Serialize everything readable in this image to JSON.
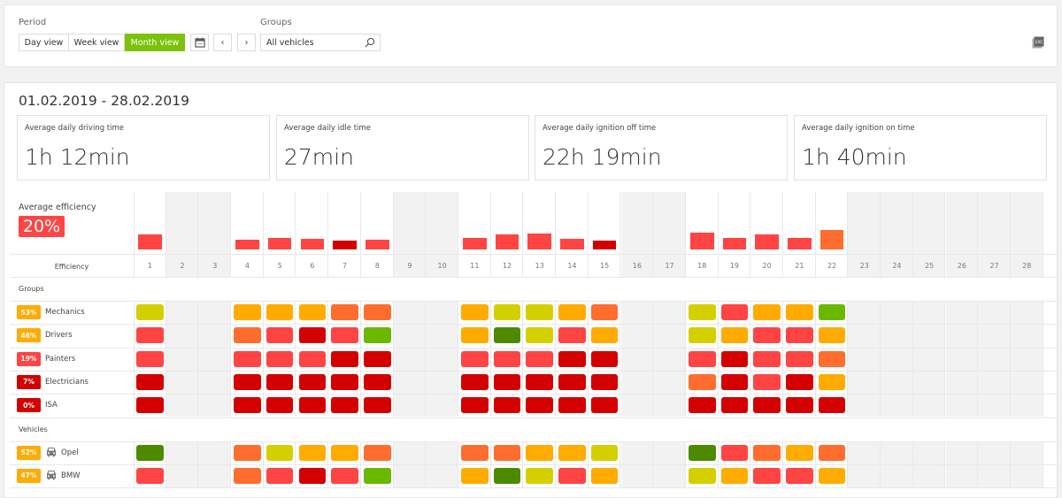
{
  "toolbar": {
    "period_label": "Period",
    "views": [
      "Day view",
      "Week view",
      "Month view"
    ],
    "active_view": "Month view",
    "groups_label": "Groups",
    "groups_value": "All vehicles",
    "export_label": "EXC"
  },
  "summary": {
    "date_range": "01.02.2019 - 28.02.2019",
    "cards": [
      {
        "title": "Average daily driving time",
        "value": "1h 12min"
      },
      {
        "title": "Average daily idle time",
        "value": "27min"
      },
      {
        "title": "Average daily ignition off time",
        "value": "22h 19min"
      },
      {
        "title": "Average daily ignition on time",
        "value": "1h 40min"
      }
    ]
  },
  "efficiency": {
    "title": "Average efficiency",
    "value": "20%",
    "value_color": "#ff4444",
    "row_label": "Efficiency"
  },
  "colors": {
    "Y": "#d4d000",
    "O": "#ffab00",
    "OR": "#ff6d2e",
    "R": "#ff4444",
    "D": "#d40000",
    "G": "#6ab800",
    "DG": "#4e8a00"
  },
  "chart_data": {
    "type": "bar",
    "categories": [
      "1",
      "2",
      "3",
      "4",
      "5",
      "6",
      "7",
      "8",
      "9",
      "10",
      "11",
      "12",
      "13",
      "14",
      "15",
      "16",
      "17",
      "18",
      "19",
      "20",
      "21",
      "22",
      "23",
      "24",
      "25",
      "26",
      "27",
      "28"
    ],
    "values": [
      27,
      null,
      null,
      17,
      20,
      19,
      16,
      17,
      null,
      null,
      20,
      27,
      28,
      19,
      16,
      null,
      null,
      30,
      20,
      27,
      20,
      34,
      null,
      null,
      null,
      null,
      null,
      null
    ],
    "bar_colors": [
      "R",
      null,
      null,
      "R",
      "R",
      "R",
      "D",
      "R",
      null,
      null,
      "R",
      "R",
      "R",
      "R",
      "D",
      null,
      null,
      "R",
      "R",
      "R",
      "R",
      "OR",
      null,
      null,
      null,
      null,
      null,
      null
    ],
    "ylim": [
      0,
      100
    ]
  },
  "inactive_days": [
    2,
    3,
    9,
    10,
    16,
    17,
    23,
    24,
    25,
    26,
    27,
    28
  ],
  "active_days": [
    1,
    4,
    5,
    6,
    7,
    8,
    11,
    12,
    13,
    14,
    15,
    18,
    19,
    20,
    21,
    22
  ],
  "sections": [
    {
      "title": "Groups",
      "rows": [
        {
          "name": "Mechanics",
          "pct": "53%",
          "pct_color": "O",
          "cells": [
            "Y",
            "O",
            "O",
            "O",
            "OR",
            "OR",
            "O",
            "Y",
            "Y",
            "O",
            "OR",
            "Y",
            "R",
            "O",
            "O",
            "G"
          ]
        },
        {
          "name": "Drivers",
          "pct": "46%",
          "pct_color": "O",
          "cells": [
            "R",
            "OR",
            "R",
            "D",
            "R",
            "G",
            "O",
            "DG",
            "Y",
            "R",
            "O",
            "Y",
            "O",
            "R",
            "R",
            "O"
          ]
        },
        {
          "name": "Painters",
          "pct": "19%",
          "pct_color": "R",
          "cells": [
            "R",
            "R",
            "R",
            "R",
            "D",
            "D",
            "R",
            "R",
            "R",
            "D",
            "D",
            "R",
            "D",
            "R",
            "R",
            "OR"
          ]
        },
        {
          "name": "Electricians",
          "pct": "7%",
          "pct_color": "D",
          "cells": [
            "D",
            "D",
            "D",
            "D",
            "D",
            "D",
            "D",
            "D",
            "D",
            "D",
            "D",
            "OR",
            "D",
            "R",
            "D",
            "O"
          ]
        },
        {
          "name": "ISA",
          "pct": "0%",
          "pct_color": "D",
          "cells": [
            "D",
            "D",
            "D",
            "D",
            "D",
            "D",
            "D",
            "D",
            "D",
            "D",
            "D",
            "D",
            "D",
            "D",
            "D",
            "D"
          ]
        }
      ]
    },
    {
      "title": "Vehicles",
      "rows": [
        {
          "name": "Opel",
          "pct": "52%",
          "pct_color": "O",
          "icon": "car-icon",
          "cells": [
            "DG",
            "OR",
            "Y",
            "O",
            "O",
            "OR",
            "OR",
            "OR",
            "O",
            "O",
            "Y",
            "DG",
            "R",
            "OR",
            "O",
            "OR"
          ]
        },
        {
          "name": "BMW",
          "pct": "47%",
          "pct_color": "O",
          "icon": "car-icon",
          "cells": [
            "R",
            "OR",
            "R",
            "D",
            "R",
            "G",
            "O",
            "DG",
            "Y",
            "R",
            "O",
            "Y",
            "O",
            "R",
            "R",
            "O"
          ]
        }
      ]
    }
  ]
}
